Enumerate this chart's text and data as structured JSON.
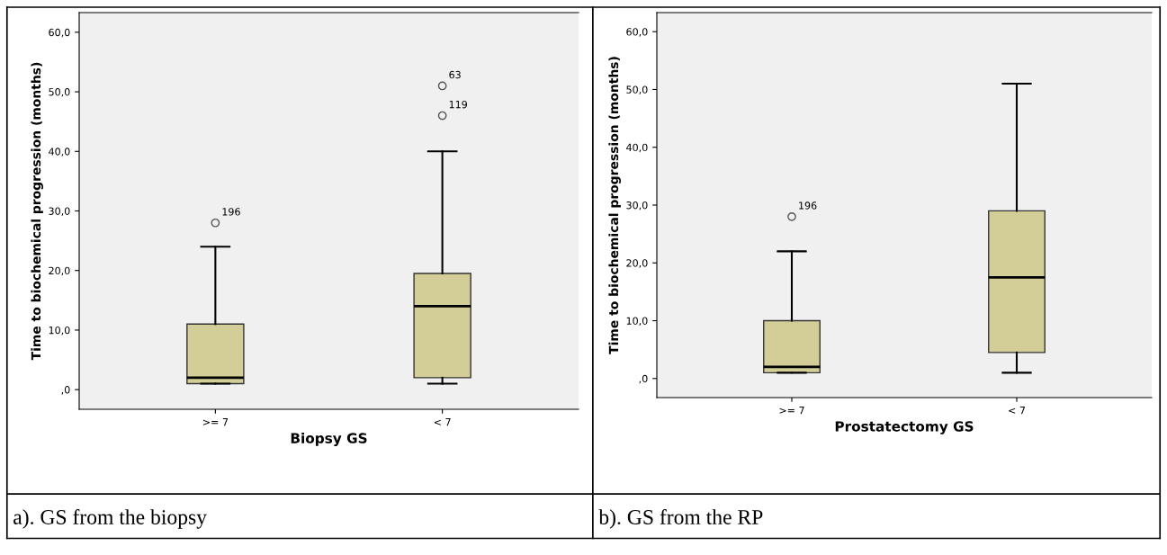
{
  "chart_data": [
    {
      "type": "box",
      "xlabel": "Biopsy GS",
      "ylabel": "Time to biochemical progression (months)",
      "categories": [
        ">= 7",
        "< 7"
      ],
      "color": "#d3ce98",
      "boxes": [
        {
          "low": 1,
          "q1": 1,
          "median": 2,
          "q3": 11,
          "high": 24,
          "outliers": [
            28
          ]
        },
        {
          "low": 1,
          "q1": 2,
          "median": 14,
          "q3": 19.5,
          "high": 40,
          "outliers": [
            51,
            46
          ]
        }
      ],
      "ylim": [
        -3.3,
        63.3
      ],
      "yticks": [
        {
          "value": 0,
          "label": ",0"
        },
        {
          "value": 10,
          "label": "10,0"
        },
        {
          "value": 20,
          "label": "20,0"
        },
        {
          "value": 30,
          "label": "30,0"
        },
        {
          "value": 40,
          "label": "40,0"
        },
        {
          "value": 50,
          "label": "50,0"
        },
        {
          "value": 60,
          "label": "60,0"
        }
      ],
      "grid": false,
      "annotations": [
        "196",
        "63",
        "119",
        "a). GS from the biopsy"
      ]
    },
    {
      "type": "box",
      "xlabel": "Prostatectomy GS",
      "ylabel": "Time to biochemical progression (months)",
      "categories": [
        ">= 7",
        "< 7"
      ],
      "color": "#d3ce98",
      "boxes": [
        {
          "low": 1,
          "q1": 1,
          "median": 2,
          "q3": 10,
          "high": 22,
          "outliers": [
            28
          ]
        },
        {
          "low": 1,
          "q1": 4.5,
          "median": 17.5,
          "q3": 29,
          "high": 51
        }
      ],
      "ylim": [
        -3.3,
        63.3
      ],
      "yticks": [
        {
          "value": 0,
          "label": ",0"
        },
        {
          "value": 10,
          "label": "10,0"
        },
        {
          "value": 20,
          "label": "20,0"
        },
        {
          "value": 30,
          "label": "30,0"
        },
        {
          "value": 40,
          "label": "40,0"
        },
        {
          "value": 50,
          "label": "50,0"
        },
        {
          "value": 60,
          "label": "60,0"
        }
      ],
      "grid": false,
      "annotations": [
        "196",
        "b). GS from the RP"
      ]
    }
  ]
}
